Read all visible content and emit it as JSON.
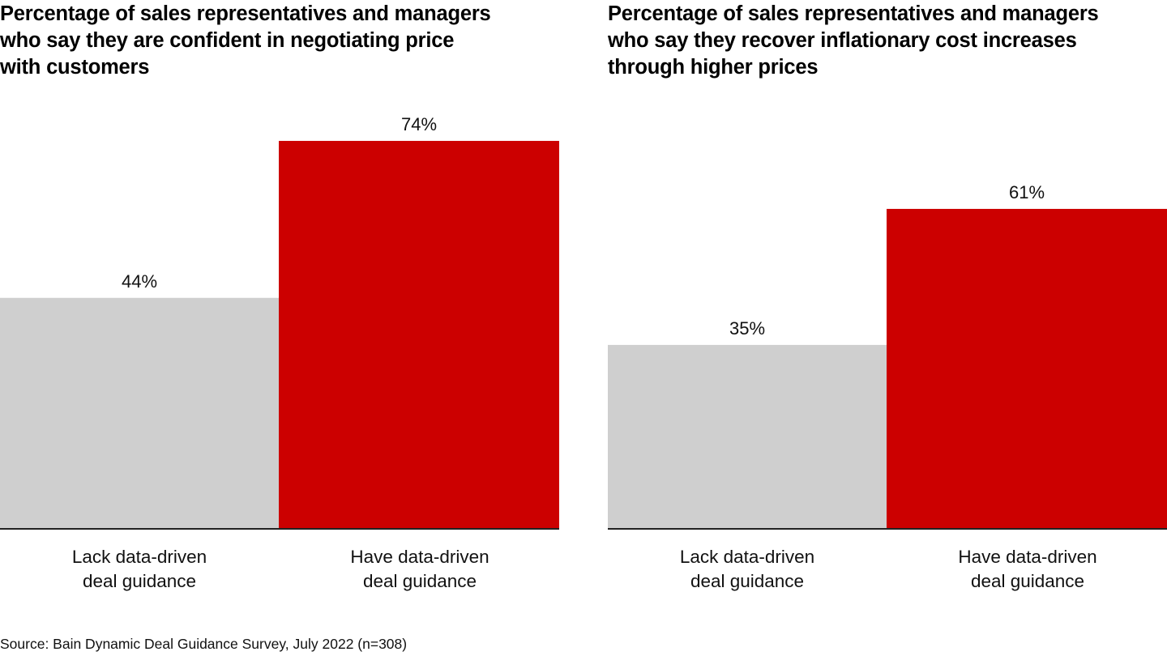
{
  "colors": {
    "lack": "#cfcfcf",
    "have": "#cc0000",
    "axis": "#222222"
  },
  "source": "Source: Bain Dynamic Deal Guidance Survey, July 2022 (n=308)",
  "chart_data": [
    {
      "type": "bar",
      "title": "Percentage of sales representatives and managers who say they are confident in negotiating price with customers",
      "title_lines": [
        "Percentage of sales representatives and managers",
        "who say they are confident in negotiating price",
        "with customers"
      ],
      "categories": [
        "Lack data-driven deal guidance",
        "Have data-driven deal guidance"
      ],
      "category_lines": [
        [
          "Lack data-driven",
          "deal guidance"
        ],
        [
          "Have data-driven",
          "deal guidance"
        ]
      ],
      "values": [
        44,
        74
      ],
      "value_labels": [
        "44%",
        "74%"
      ],
      "unit": "%",
      "xlabel": "",
      "ylabel": "",
      "ylim": [
        0,
        100
      ],
      "grid": false,
      "legend": "none"
    },
    {
      "type": "bar",
      "title": "Percentage of sales representatives and managers who say they recover inflationary cost increases through higher prices",
      "title_lines": [
        "Percentage of sales representatives and managers",
        "who say they recover inflationary cost increases",
        "through higher prices"
      ],
      "categories": [
        "Lack data-driven deal guidance",
        "Have data-driven deal guidance"
      ],
      "category_lines": [
        [
          "Lack data-driven",
          "deal guidance"
        ],
        [
          "Have data-driven",
          "deal guidance"
        ]
      ],
      "values": [
        35,
        61
      ],
      "value_labels": [
        "35%",
        "61%"
      ],
      "unit": "%",
      "xlabel": "",
      "ylabel": "",
      "ylim": [
        0,
        100
      ],
      "grid": false,
      "legend": "none"
    }
  ]
}
